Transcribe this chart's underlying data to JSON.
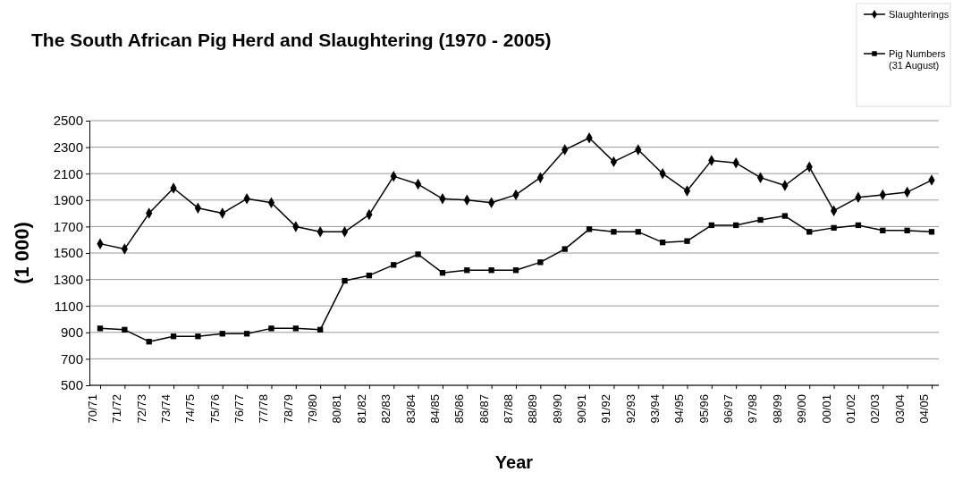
{
  "chart_data": {
    "type": "line",
    "title": "The South African Pig Herd and Slaughtering (1970 - 2005)",
    "xlabel": "Year",
    "ylabel": "(1 000)",
    "categories": [
      "70/71",
      "71/72",
      "72/73",
      "73/74",
      "74/75",
      "75/76",
      "76/77",
      "77/78",
      "78/79",
      "79/80",
      "80/81",
      "81/82",
      "82/83",
      "83/84",
      "84/85",
      "85/86",
      "86/87",
      "87/88",
      "88/89",
      "89/90",
      "90/91",
      "91/92",
      "92/93",
      "93/94",
      "94/95",
      "95/96",
      "96/97",
      "97/98",
      "98/99",
      "99/00",
      "00/01",
      "01/02",
      "02/03",
      "03/04",
      "04/05"
    ],
    "series": [
      {
        "name": "Slaughterings",
        "color": "#000000",
        "marker": "diamond",
        "values": [
          1570,
          1530,
          1800,
          1990,
          1840,
          1800,
          1910,
          1880,
          1700,
          1660,
          1660,
          1790,
          2080,
          2020,
          1910,
          1900,
          1880,
          1940,
          2070,
          2280,
          2370,
          2190,
          2280,
          2100,
          1970,
          2200,
          2180,
          2070,
          2010,
          2150,
          1820,
          1920,
          1940,
          1960,
          2050
        ]
      },
      {
        "name": "Pig Numbers (31 August)",
        "color": "#000000",
        "marker": "square",
        "values": [
          930,
          920,
          830,
          870,
          870,
          890,
          890,
          930,
          930,
          920,
          1290,
          1330,
          1410,
          1490,
          1350,
          1370,
          1370,
          1370,
          1430,
          1530,
          1680,
          1660,
          1660,
          1580,
          1590,
          1710,
          1710,
          1750,
          1780,
          1660,
          1690,
          1710,
          1670,
          1670,
          1660
        ]
      }
    ],
    "ylim": [
      500,
      2500
    ],
    "yticks": [
      500,
      700,
      900,
      1100,
      1300,
      1500,
      1700,
      1900,
      2100,
      2300,
      2500
    ],
    "grid": "y",
    "legend": "top right",
    "line_style": "solid"
  }
}
